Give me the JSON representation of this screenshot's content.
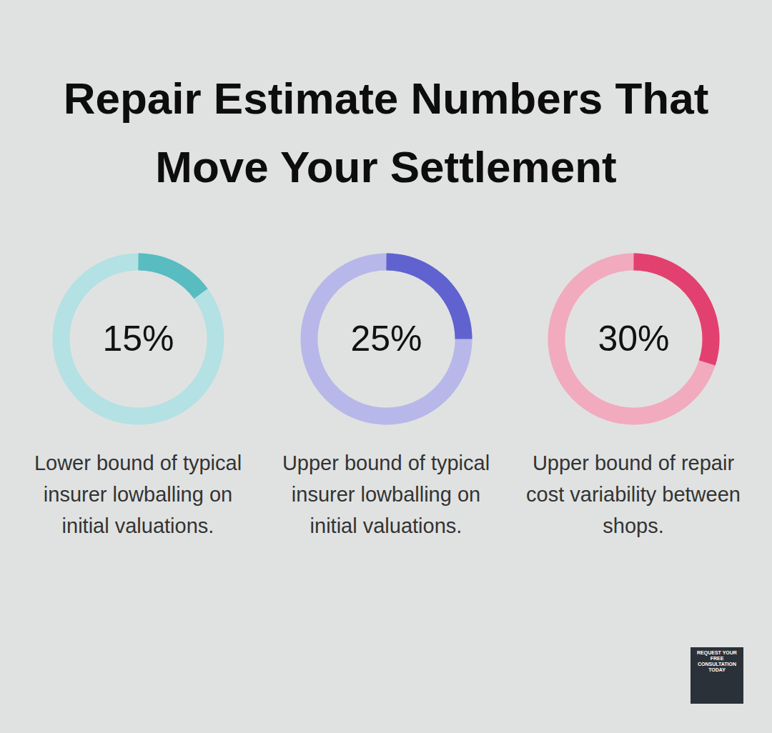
{
  "chart_data": {
    "type": "donut",
    "title": "Repair Estimate Numbers That Move Your Settlement",
    "categories": [
      "Lower bound of typical insurer lowballing on initial valuations.",
      "Upper bound of typical insurer lowballing on initial valuations.",
      "Upper bound of repair cost variability between shops."
    ],
    "values": [
      15,
      25,
      30
    ],
    "value_labels": [
      "15%",
      "25%",
      "30%"
    ],
    "colors": [
      "#58bcc0",
      "#5f62cf",
      "#e2416f"
    ],
    "data_labels": true,
    "annotations": [
      "REQUEST YOUR FREE CONSULTATION TODAY"
    ]
  }
}
